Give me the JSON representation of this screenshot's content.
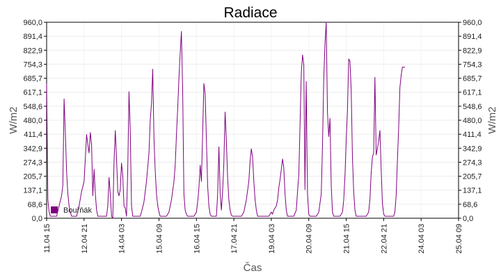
{
  "chart_data": {
    "type": "line",
    "title": "Radiace",
    "xlabel": "Čas",
    "ylabel": "W/m2",
    "ylabel_right": "W/m2",
    "ylim": [
      0,
      960
    ],
    "yticks": [
      0.0,
      68.6,
      137.1,
      205.7,
      274.3,
      342.9,
      411.4,
      480.0,
      548.6,
      617.1,
      685.7,
      754.3,
      822.9,
      891.4,
      960.0
    ],
    "ytick_labels": [
      "0,0",
      "68,6",
      "137,1",
      "205,7",
      "274,3",
      "342,9",
      "411,4",
      "480,0",
      "548,6",
      "617,1",
      "685,7",
      "754,3",
      "822,9",
      "891,4",
      "960,0"
    ],
    "x_unit": "hours since 11.04 15:00",
    "xlim": [
      0,
      330
    ],
    "xticks": [
      0,
      30,
      60,
      90,
      120,
      150,
      180,
      210,
      240,
      270,
      300,
      330
    ],
    "xtick_labels": [
      "11.04 15",
      "12.04 21",
      "14.04 03",
      "15.04 09",
      "16.04 15",
      "17.04 21",
      "19.04 03",
      "20.04 09",
      "21.04 15",
      "22.04 21",
      "24.04 03",
      "25.04 09"
    ],
    "grid": true,
    "legend_position": "bottom-left",
    "series": [
      {
        "name": "Bouřňák",
        "color": "#800080",
        "points": [
          [
            0,
            660
          ],
          [
            1,
            90
          ],
          [
            2,
            30
          ],
          [
            3,
            10
          ],
          [
            8,
            10
          ],
          [
            10,
            60
          ],
          [
            12,
            110
          ],
          [
            13,
            160
          ],
          [
            14,
            585
          ],
          [
            15,
            420
          ],
          [
            16,
            230
          ],
          [
            17,
            120
          ],
          [
            18,
            60
          ],
          [
            19,
            30
          ],
          [
            20,
            10
          ],
          [
            23,
            10
          ],
          [
            24,
            10
          ],
          [
            26,
            60
          ],
          [
            28,
            130
          ],
          [
            30,
            180
          ],
          [
            31,
            290
          ],
          [
            32,
            410
          ],
          [
            33,
            360
          ],
          [
            34,
            320
          ],
          [
            35,
            420
          ],
          [
            36,
            360
          ],
          [
            37,
            110
          ],
          [
            38,
            240
          ],
          [
            39,
            120
          ],
          [
            40,
            40
          ],
          [
            41,
            10
          ],
          [
            44,
            10
          ],
          [
            48,
            10
          ],
          [
            49,
            60
          ],
          [
            50,
            200
          ],
          [
            51,
            120
          ],
          [
            52,
            10
          ],
          [
            53,
            0
          ],
          [
            54,
            280
          ],
          [
            55,
            430
          ],
          [
            56,
            290
          ],
          [
            57,
            130
          ],
          [
            58,
            110
          ],
          [
            59,
            140
          ],
          [
            60,
            270
          ],
          [
            61,
            210
          ],
          [
            62,
            60
          ],
          [
            63,
            50
          ],
          [
            64,
            10
          ],
          [
            65,
            240
          ],
          [
            66,
            620
          ],
          [
            67,
            430
          ],
          [
            68,
            60
          ],
          [
            69,
            10
          ],
          [
            72,
            10
          ],
          [
            75,
            10
          ],
          [
            76,
            30
          ],
          [
            78,
            80
          ],
          [
            80,
            180
          ],
          [
            82,
            320
          ],
          [
            83,
            480
          ],
          [
            84,
            560
          ],
          [
            85,
            730
          ],
          [
            86,
            390
          ],
          [
            87,
            230
          ],
          [
            88,
            120
          ],
          [
            89,
            60
          ],
          [
            90,
            30
          ],
          [
            91,
            10
          ],
          [
            96,
            10
          ],
          [
            98,
            30
          ],
          [
            100,
            90
          ],
          [
            102,
            180
          ],
          [
            103,
            260
          ],
          [
            104,
            410
          ],
          [
            105,
            540
          ],
          [
            106,
            690
          ],
          [
            107,
            810
          ],
          [
            108,
            915
          ],
          [
            109,
            630
          ],
          [
            110,
            120
          ],
          [
            111,
            40
          ],
          [
            112,
            20
          ],
          [
            113,
            10
          ],
          [
            118,
            10
          ],
          [
            120,
            30
          ],
          [
            121,
            80
          ],
          [
            122,
            150
          ],
          [
            123,
            260
          ],
          [
            124,
            180
          ],
          [
            125,
            410
          ],
          [
            126,
            660
          ],
          [
            127,
            610
          ],
          [
            128,
            390
          ],
          [
            129,
            160
          ],
          [
            130,
            60
          ],
          [
            131,
            20
          ],
          [
            132,
            10
          ],
          [
            136,
            10
          ],
          [
            137,
            120
          ],
          [
            138,
            350
          ],
          [
            139,
            120
          ],
          [
            140,
            40
          ],
          [
            141,
            130
          ],
          [
            142,
            270
          ],
          [
            143,
            520
          ],
          [
            144,
            380
          ],
          [
            145,
            200
          ],
          [
            146,
            90
          ],
          [
            147,
            40
          ],
          [
            148,
            15
          ],
          [
            149,
            10
          ],
          [
            156,
            10
          ],
          [
            158,
            30
          ],
          [
            160,
            90
          ],
          [
            162,
            180
          ],
          [
            163,
            280
          ],
          [
            164,
            340
          ],
          [
            165,
            300
          ],
          [
            166,
            180
          ],
          [
            167,
            90
          ],
          [
            168,
            40
          ],
          [
            169,
            10
          ],
          [
            178,
            10
          ],
          [
            180,
            30
          ],
          [
            181,
            20
          ],
          [
            182,
            40
          ],
          [
            184,
            60
          ],
          [
            185,
            90
          ],
          [
            186,
            150
          ],
          [
            187,
            190
          ],
          [
            188,
            240
          ],
          [
            189,
            290
          ],
          [
            190,
            250
          ],
          [
            191,
            120
          ],
          [
            192,
            40
          ],
          [
            193,
            10
          ],
          [
            198,
            10
          ],
          [
            200,
            40
          ],
          [
            201,
            130
          ],
          [
            202,
            210
          ],
          [
            203,
            460
          ],
          [
            204,
            710
          ],
          [
            205,
            800
          ],
          [
            206,
            750
          ],
          [
            207,
            140
          ],
          [
            208,
            670
          ],
          [
            209,
            120
          ],
          [
            210,
            20
          ],
          [
            211,
            10
          ],
          [
            216,
            10
          ],
          [
            218,
            30
          ],
          [
            220,
            120
          ],
          [
            221,
            360
          ],
          [
            222,
            690
          ],
          [
            223,
            850
          ],
          [
            224,
            960
          ],
          [
            225,
            520
          ],
          [
            226,
            400
          ],
          [
            227,
            490
          ],
          [
            228,
            160
          ],
          [
            229,
            30
          ],
          [
            230,
            10
          ],
          [
            235,
            10
          ],
          [
            237,
            30
          ],
          [
            238,
            90
          ],
          [
            239,
            210
          ],
          [
            240,
            380
          ],
          [
            241,
            520
          ],
          [
            242,
            780
          ],
          [
            243,
            770
          ],
          [
            244,
            630
          ],
          [
            245,
            300
          ],
          [
            246,
            130
          ],
          [
            247,
            40
          ],
          [
            248,
            10
          ],
          [
            256,
            10
          ],
          [
            258,
            30
          ],
          [
            259,
            90
          ],
          [
            260,
            220
          ],
          [
            261,
            300
          ],
          [
            262,
            320
          ],
          [
            263,
            690
          ],
          [
            264,
            310
          ],
          [
            265,
            340
          ],
          [
            266,
            380
          ],
          [
            267,
            430
          ],
          [
            268,
            240
          ],
          [
            269,
            70
          ],
          [
            270,
            20
          ],
          [
            271,
            10
          ],
          [
            278,
            10
          ],
          [
            279,
            30
          ],
          [
            280,
            110
          ],
          [
            281,
            280
          ],
          [
            282,
            440
          ],
          [
            283,
            640
          ],
          [
            284,
            700
          ],
          [
            285,
            740
          ],
          [
            286,
            740
          ],
          [
            287,
            740
          ]
        ]
      }
    ]
  }
}
